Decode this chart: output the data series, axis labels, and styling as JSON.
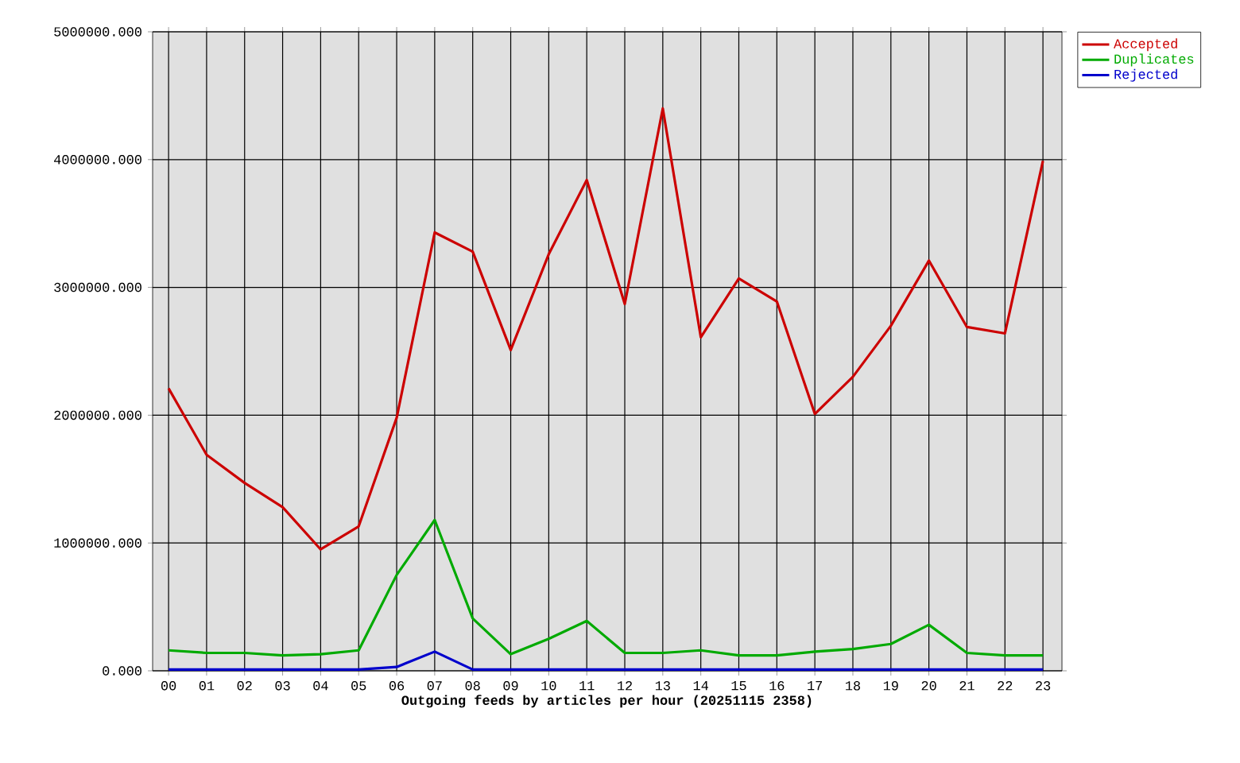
{
  "chart_data": {
    "type": "line",
    "xlabel": "Outgoing feeds by articles per hour (20251115 2358)",
    "categories": [
      "00",
      "01",
      "02",
      "03",
      "04",
      "05",
      "06",
      "07",
      "08",
      "09",
      "10",
      "11",
      "12",
      "13",
      "14",
      "15",
      "16",
      "17",
      "18",
      "19",
      "20",
      "21",
      "22",
      "23"
    ],
    "series": [
      {
        "name": "Accepted",
        "color": "#cc0000",
        "values": [
          2210000,
          1690000,
          1470000,
          1280000,
          950000,
          1130000,
          1980000,
          3430000,
          3280000,
          2510000,
          3260000,
          3840000,
          2870000,
          4400000,
          2610000,
          3070000,
          2890000,
          2010000,
          2300000,
          2700000,
          3210000,
          2690000,
          2640000,
          3990000
        ]
      },
      {
        "name": "Duplicates",
        "color": "#00aa00",
        "values": [
          160000,
          140000,
          140000,
          120000,
          130000,
          160000,
          750000,
          1180000,
          410000,
          130000,
          250000,
          390000,
          140000,
          140000,
          160000,
          120000,
          120000,
          150000,
          170000,
          210000,
          360000,
          140000,
          120000,
          120000
        ]
      },
      {
        "name": "Rejected",
        "color": "#0000cc",
        "values": [
          10000,
          10000,
          10000,
          10000,
          10000,
          10000,
          30000,
          150000,
          10000,
          10000,
          10000,
          10000,
          10000,
          10000,
          10000,
          10000,
          10000,
          10000,
          10000,
          10000,
          10000,
          10000,
          10000,
          10000
        ]
      }
    ],
    "ylim": [
      0,
      5000000
    ],
    "yticks": [
      {
        "value": 0,
        "label": "0.000"
      },
      {
        "value": 1000000,
        "label": "1000000.000"
      },
      {
        "value": 2000000,
        "label": "2000000.000"
      },
      {
        "value": 3000000,
        "label": "3000000.000"
      },
      {
        "value": 4000000,
        "label": "4000000.000"
      },
      {
        "value": 5000000,
        "label": "5000000.000"
      }
    ],
    "grid": true,
    "legend": "top right",
    "marker": "none",
    "line_style": "solid"
  }
}
